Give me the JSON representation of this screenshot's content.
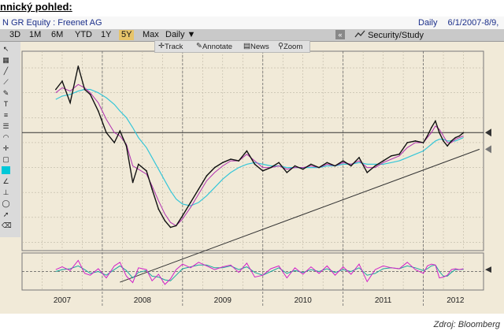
{
  "header": {
    "heading": "nnický pohled:",
    "security_title": "N GR Equity : Freenet AG",
    "period_label": "Daily",
    "date_range": "6/1/2007-8/9,"
  },
  "toolbar": {
    "periods": [
      "3D",
      "1M",
      "6M",
      "YTD",
      "1Y",
      "5Y",
      "Max"
    ],
    "active_period": "5Y",
    "frequency": "Daily",
    "frequency_arrow": "▼",
    "collapse_glyph": "«",
    "study_label": "Security/Study"
  },
  "subtoolbar": {
    "track": "Track",
    "annotate": "Annotate",
    "news": "News",
    "zoom": "Zoom"
  },
  "footer": {
    "source": "Zdroj: Bloomberg"
  },
  "colors": {
    "plot_background": "#f1ead8",
    "price": "#111111",
    "ma_fast": "#b030b0",
    "ma_slow": "#35c6d8",
    "osc_a": "#d020c8",
    "osc_b": "#1aa6a0",
    "active_tab": "#e7c46a"
  },
  "chart_data": {
    "type": "line",
    "price_series": {
      "x": [
        2007.42,
        2007.5,
        2007.6,
        2007.7,
        2007.78,
        2007.85,
        2007.95,
        2008.05,
        2008.15,
        2008.22,
        2008.3,
        2008.38,
        2008.45,
        2008.55,
        2008.62,
        2008.7,
        2008.78,
        2008.85,
        2008.92,
        2009.0,
        2009.1,
        2009.2,
        2009.3,
        2009.4,
        2009.5,
        2009.6,
        2009.7,
        2009.8,
        2009.9,
        2010.0,
        2010.1,
        2010.2,
        2010.3,
        2010.4,
        2010.5,
        2010.6,
        2010.7,
        2010.8,
        2010.9,
        2011.0,
        2011.1,
        2011.2,
        2011.3,
        2011.4,
        2011.5,
        2011.6,
        2011.7,
        2011.8,
        2011.9,
        2012.0,
        2012.05,
        2012.1,
        2012.15,
        2012.2,
        2012.25,
        2012.3,
        2012.35,
        2012.4,
        2012.45,
        2012.5
      ],
      "values": [
        10.2,
        10.7,
        9.4,
        11.6,
        10.2,
        9.9,
        8.9,
        7.6,
        7.0,
        7.7,
        6.8,
        4.6,
        5.7,
        5.3,
        4.2,
        3.0,
        2.3,
        1.9,
        2.0,
        2.6,
        3.4,
        4.2,
        5.0,
        5.5,
        5.8,
        6.0,
        5.9,
        6.5,
        5.7,
        5.3,
        5.5,
        5.8,
        5.2,
        5.6,
        5.4,
        5.7,
        5.5,
        5.8,
        5.6,
        5.9,
        5.6,
        6.1,
        5.2,
        5.6,
        5.9,
        6.2,
        6.3,
        7.0,
        7.1,
        7.0,
        7.4,
        7.9,
        8.3,
        7.6,
        7.1,
        6.8,
        7.1,
        7.3,
        7.4,
        7.6
      ]
    },
    "moving_averages": [
      {
        "values": [
          10.0,
          10.3,
          10.1,
          10.5,
          10.3,
          10.0,
          9.4,
          8.4,
          7.6,
          7.4,
          6.9,
          5.6,
          5.4,
          5.1,
          4.4,
          3.5,
          2.7,
          2.2,
          2.0,
          2.4,
          3.1,
          3.9,
          4.7,
          5.2,
          5.6,
          5.9,
          5.9,
          6.3,
          5.9,
          5.5,
          5.5,
          5.6,
          5.4,
          5.5,
          5.5,
          5.6,
          5.5,
          5.7,
          5.6,
          5.8,
          5.7,
          5.9,
          5.5,
          5.5,
          5.8,
          6.0,
          6.2,
          6.7,
          7.0,
          7.0,
          7.3,
          7.6,
          8.0,
          7.8,
          7.4,
          7.0,
          7.0,
          7.2,
          7.3,
          7.4
        ]
      },
      {
        "values": [
          9.6,
          9.8,
          9.9,
          10.1,
          10.2,
          10.2,
          10.0,
          9.7,
          9.3,
          8.9,
          8.5,
          7.9,
          7.3,
          6.7,
          6.1,
          5.4,
          4.7,
          4.1,
          3.6,
          3.3,
          3.2,
          3.4,
          3.8,
          4.3,
          4.8,
          5.2,
          5.5,
          5.7,
          5.8,
          5.7,
          5.6,
          5.6,
          5.5,
          5.5,
          5.5,
          5.5,
          5.5,
          5.6,
          5.6,
          5.7,
          5.7,
          5.8,
          5.7,
          5.7,
          5.7,
          5.8,
          5.9,
          6.1,
          6.3,
          6.5,
          6.7,
          6.9,
          7.1,
          7.2,
          7.2,
          7.1,
          7.1,
          7.1,
          7.2,
          7.3
        ]
      }
    ],
    "reference_lines": [
      {
        "kind": "horizontal",
        "y": 7.6
      },
      {
        "kind": "trendline",
        "x": [
          2008.22,
          2012.7
        ],
        "y": [
          -1.4,
          6.6
        ]
      }
    ],
    "oscillator": {
      "a": [
        0.1,
        0.25,
        0.05,
        0.6,
        -0.1,
        -0.2,
        0.15,
        -0.35,
        0.3,
        0.5,
        -0.25,
        -0.6,
        0.2,
        0.1,
        -0.5,
        -0.15,
        -0.7,
        -0.4,
        0.1,
        0.4,
        0.2,
        0.5,
        0.3,
        0.1,
        0.25,
        0.35,
        -0.05,
        0.45,
        -0.3,
        -0.2,
        0.15,
        0.3,
        -0.35,
        0.2,
        -0.15,
        0.25,
        -0.1,
        0.3,
        -0.2,
        0.25,
        -0.15,
        0.4,
        -0.55,
        0.1,
        0.3,
        0.2,
        0.15,
        0.5,
        0.1,
        -0.1,
        0.3,
        0.4,
        0.35,
        -0.35,
        -0.3,
        -0.2,
        0.1,
        0.15,
        0.1,
        0.15
      ],
      "b": [
        0.0,
        0.1,
        0.15,
        0.3,
        0.1,
        -0.1,
        0.0,
        -0.2,
        0.1,
        0.3,
        0.05,
        -0.35,
        -0.05,
        0.05,
        -0.25,
        -0.3,
        -0.45,
        -0.5,
        -0.2,
        0.15,
        0.25,
        0.35,
        0.35,
        0.2,
        0.2,
        0.3,
        0.1,
        0.25,
        -0.05,
        -0.2,
        0.0,
        0.2,
        -0.1,
        0.05,
        -0.05,
        0.1,
        0.0,
        0.15,
        -0.05,
        0.1,
        0.0,
        0.2,
        -0.2,
        -0.1,
        0.15,
        0.2,
        0.15,
        0.3,
        0.2,
        0.05,
        0.15,
        0.3,
        0.35,
        0.0,
        -0.25,
        -0.25,
        -0.05,
        0.1,
        0.1,
        0.12
      ]
    },
    "xlim": [
      2007.0,
      2012.75
    ],
    "ylim": [
      0.5,
      12.5
    ],
    "x_tick_labels": [
      "2007",
      "2008",
      "2009",
      "2010",
      "2011",
      "2012"
    ],
    "x_tick_positions": [
      2007.5,
      2008.5,
      2009.5,
      2010.5,
      2011.5,
      2012.4
    ],
    "grid": true
  }
}
